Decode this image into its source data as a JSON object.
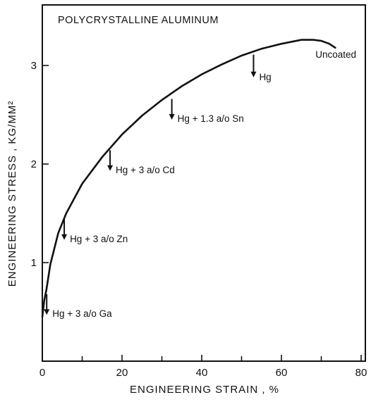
{
  "chart_data": {
    "type": "line",
    "title": "POLYCRYSTALLINE ALUMINUM",
    "xlabel": "ENGINEERING STRAIN , %",
    "ylabel": "ENGINEERING STRESS , KG/MM²",
    "xlim": [
      0,
      80
    ],
    "ylim": [
      0,
      3.5
    ],
    "xticks": [
      0,
      20,
      40,
      60,
      80
    ],
    "yticks": [
      1,
      2,
      3
    ],
    "grid": false,
    "series": [
      {
        "name": "Uncoated",
        "x": [
          0,
          0.5,
          1,
          2,
          4,
          6,
          10,
          15,
          20,
          25,
          30,
          35,
          40,
          45,
          50,
          55,
          60,
          65,
          68,
          70,
          72,
          73.5
        ],
        "y": [
          0.45,
          0.62,
          0.72,
          0.98,
          1.3,
          1.5,
          1.8,
          2.07,
          2.3,
          2.49,
          2.65,
          2.79,
          2.91,
          3.01,
          3.1,
          3.17,
          3.22,
          3.26,
          3.26,
          3.25,
          3.22,
          3.18
        ]
      }
    ],
    "annotations": [
      {
        "label": "Hg",
        "x": 53,
        "y_from": 3.11,
        "y_to": 2.88
      },
      {
        "label": "Hg + 1.3 a/o Sn",
        "x": 32.5,
        "y_from": 2.66,
        "y_to": 2.45
      },
      {
        "label": "Hg + 3 a/o Cd",
        "x": 17,
        "y_from": 2.14,
        "y_to": 1.93
      },
      {
        "label": "Hg + 3 a/o Zn",
        "x": 5.5,
        "y_from": 1.44,
        "y_to": 1.23
      },
      {
        "label": "Hg + 3 a/o Ga",
        "x": 1.1,
        "y_from": 0.68,
        "y_to": 0.47
      }
    ]
  }
}
